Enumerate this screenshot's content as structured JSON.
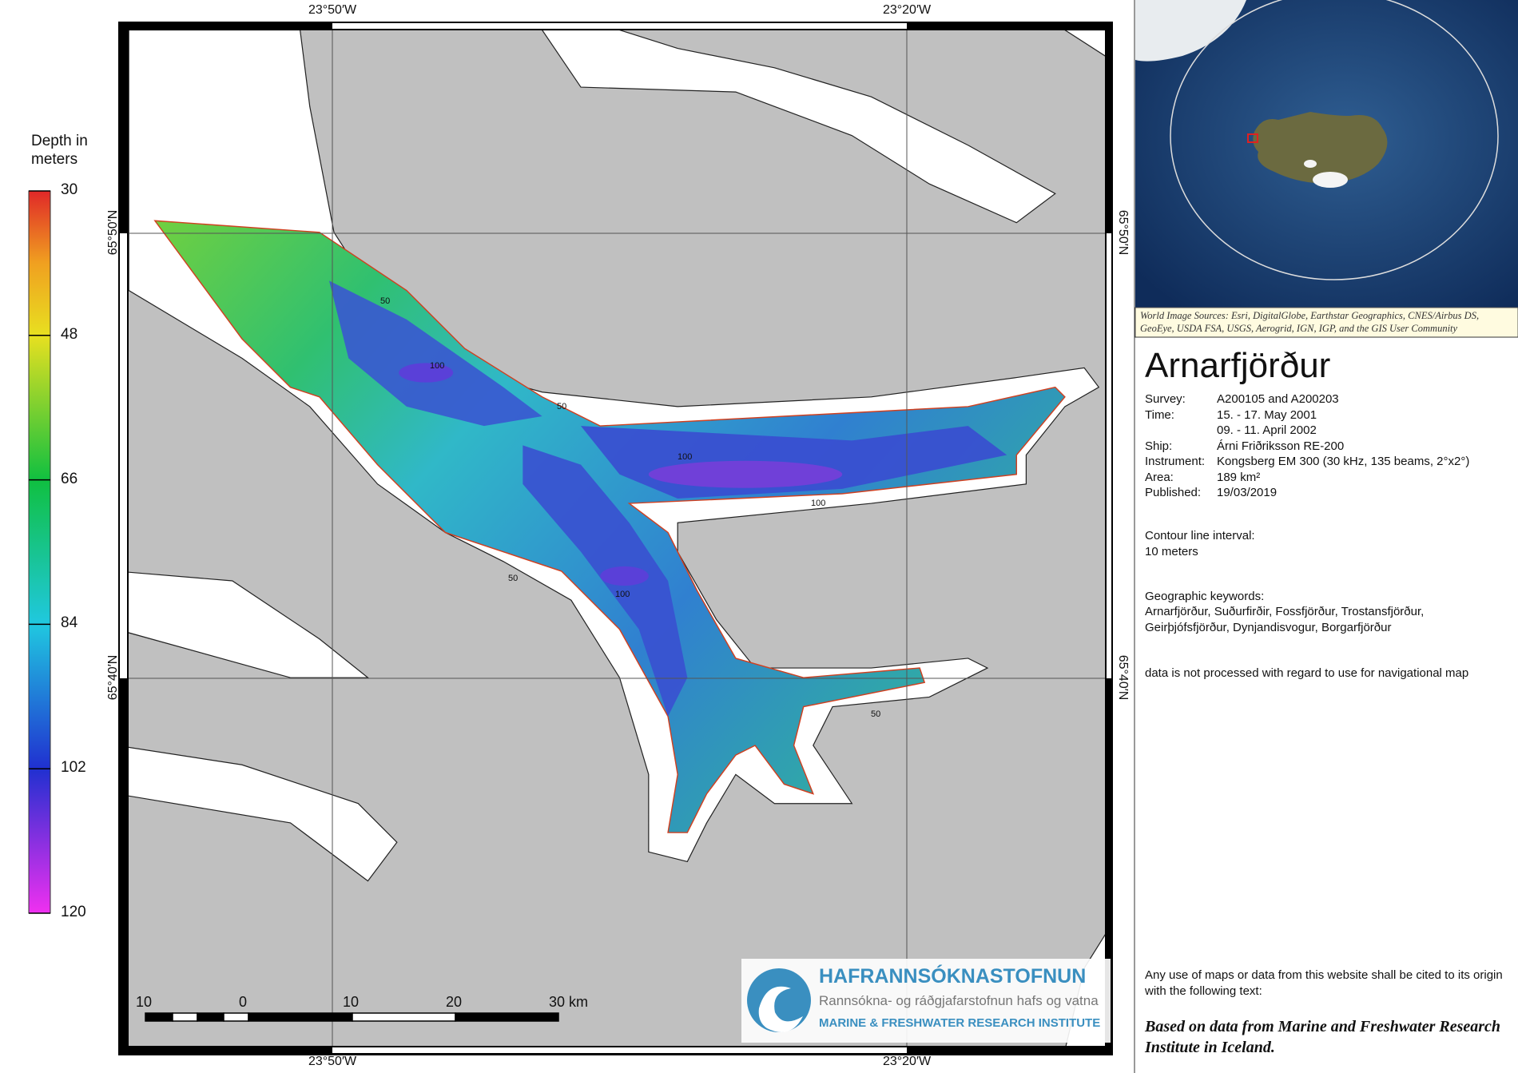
{
  "legend": {
    "title": "Depth in meters",
    "ticks": [
      30,
      48,
      66,
      84,
      102,
      120
    ]
  },
  "coordinates": {
    "longitudes": [
      "23°50′W",
      "23°20′W"
    ],
    "latitudes": [
      "65°50′N",
      "65°40′N"
    ]
  },
  "map": {
    "contour_labels": [
      "50",
      "50",
      "100",
      "100",
      "100",
      "100",
      "50",
      "50"
    ]
  },
  "scale_bar": {
    "labels": [
      "10",
      "0",
      "10",
      "20",
      "30 km"
    ]
  },
  "logo": {
    "name": "HAFRANNSÓKNASTOFNUN",
    "subtitle": "Rannsókna- og ráðgjafarstofnun hafs og vatna",
    "english": "MARINE & FRESHWATER RESEARCH INSTITUTE"
  },
  "inset": {
    "attribution": "World Image Sources: Esri, DigitalGlobe, Earthstar Geographics, CNES/Airbus DS, GeoEye, USDA FSA, USGS, Aerogrid, IGN, IGP, and the GIS User Community"
  },
  "info": {
    "title": "Arnarfjörður",
    "details": [
      {
        "label": "Survey:",
        "lines": [
          "A200105 and A200203"
        ]
      },
      {
        "label": "Time:",
        "lines": [
          "15. - 17. May 2001",
          "09. - 11. April 2002"
        ]
      },
      {
        "label": "Ship:",
        "lines": [
          "Árni Friðriksson RE-200"
        ]
      },
      {
        "label": "Instrument:",
        "lines": [
          "Kongsberg EM 300 (30 kHz, 135 beams, 2°x2°)"
        ]
      },
      {
        "label": "Area:",
        "lines": [
          "189 km²"
        ]
      },
      {
        "label": "Published:",
        "lines": [
          "19/03/2019"
        ]
      }
    ],
    "contour": [
      "Contour line interval:",
      "10 meters"
    ],
    "keywords": {
      "heading": "Geographic keywords:",
      "lines": [
        "Arnarfjörður, Suðurfirðir, Fossfjörður, Trostansfjörður,",
        "Geirþjófsfjörður, Dynjandisvogur, Borgarfjörður"
      ]
    },
    "disclaimer": "data is not processed with regard to use for navigational map",
    "citation": {
      "text": "Any use of maps or data from this website shall be cited to its origin with the following text:",
      "quote": "Based on data from Marine and Freshwater Research Institute in Iceland."
    }
  }
}
